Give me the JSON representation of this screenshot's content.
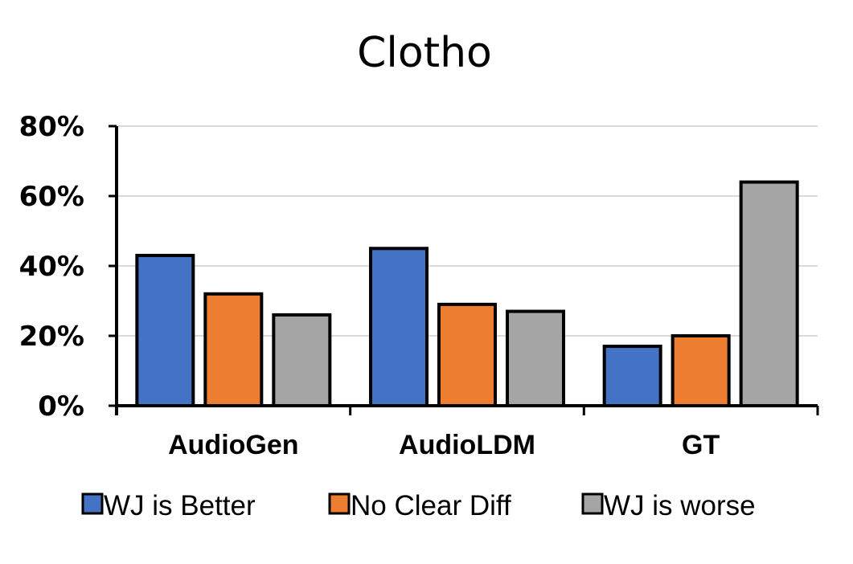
{
  "chart_data": {
    "type": "bar",
    "title": "Clotho",
    "xlabel": "",
    "ylabel": "",
    "categories": [
      "AudioGen",
      "AudioLDM",
      "GT"
    ],
    "series": [
      {
        "name": "WJ is Better",
        "values": [
          43,
          45,
          17
        ],
        "color": "#4472C4"
      },
      {
        "name": "No Clear Diff",
        "values": [
          32,
          29,
          20
        ],
        "color": "#ED7D31"
      },
      {
        "name": "WJ is worse",
        "values": [
          26,
          27,
          64
        ],
        "color": "#A5A5A5"
      }
    ],
    "ylim": [
      0,
      80
    ],
    "yticks": [
      "0%",
      "20%",
      "40%",
      "60%",
      "80%"
    ],
    "ytick_values": [
      0,
      20,
      40,
      60,
      80
    ],
    "grid": true,
    "legend_position": "bottom"
  }
}
